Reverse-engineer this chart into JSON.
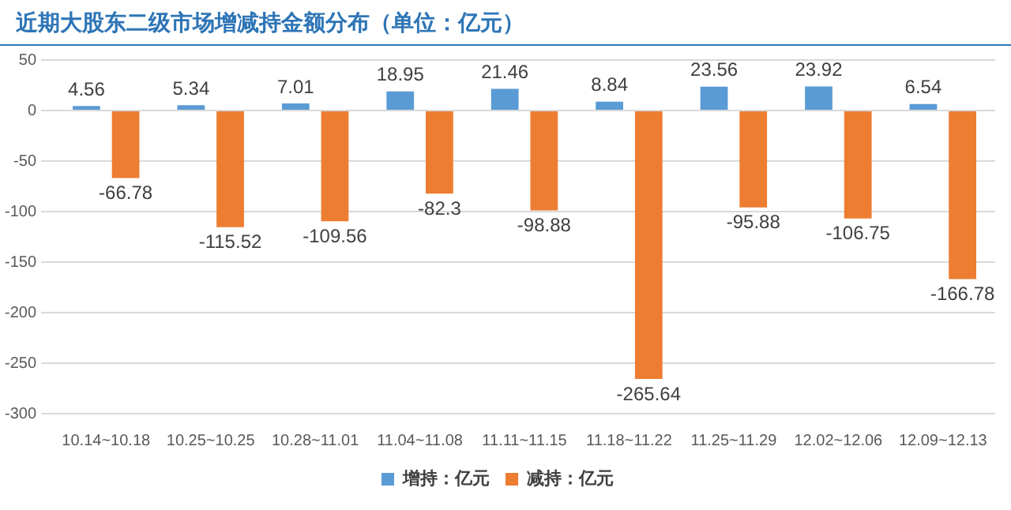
{
  "chart_data": {
    "type": "bar",
    "title": "近期大股东二级市场增减持金额分布（单位：亿元）",
    "categories": [
      "10.14~10.18",
      "10.25~10.25",
      "10.28~11.01",
      "11.04~11.08",
      "11.11~11.15",
      "11.18~11.22",
      "11.25~11.29",
      "12.02~12.06",
      "12.09~12.13"
    ],
    "series": [
      {
        "name": "增持：亿元",
        "color": "#5b9bd5",
        "values": [
          4.56,
          5.34,
          7.01,
          18.95,
          21.46,
          8.84,
          23.56,
          23.92,
          6.54
        ]
      },
      {
        "name": "减持：亿元",
        "color": "#ed7d31",
        "values": [
          -66.78,
          -115.52,
          -109.56,
          -82.3,
          -98.88,
          -265.64,
          -95.88,
          -106.75,
          -166.78
        ]
      }
    ],
    "ylim": [
      -300,
      50
    ],
    "yticks": [
      -300,
      -250,
      -200,
      -150,
      -100,
      -50,
      0,
      50
    ],
    "grid": "y",
    "legend": "bottom",
    "data_labels": true
  }
}
